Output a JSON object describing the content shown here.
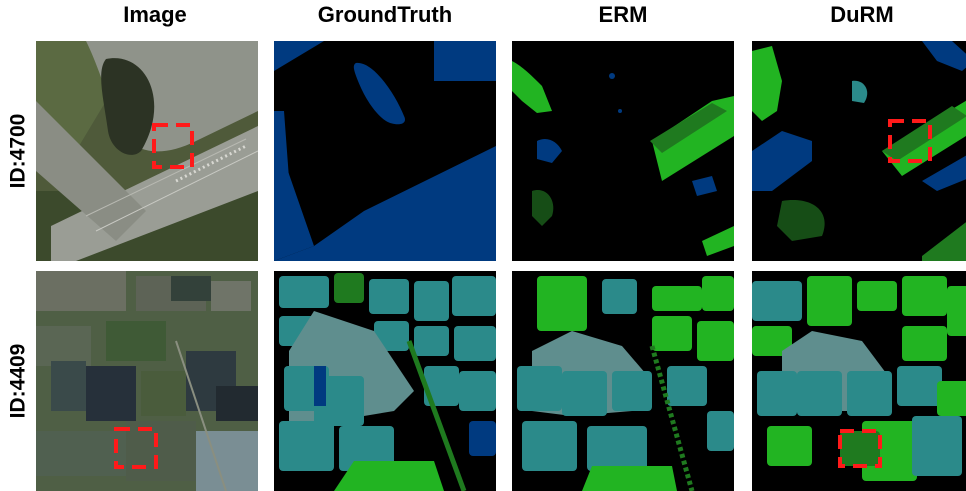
{
  "columns": [
    "Image",
    "GroundTruth",
    "ERM",
    "DuRM"
  ],
  "rows": [
    {
      "label": "ID:4700"
    },
    {
      "label": "ID:4409"
    }
  ],
  "colors": {
    "background": "#000000",
    "blue": "#003a80",
    "teal": "#2b8a8a",
    "gray_teal": "#5f8e8e",
    "bright_green": "#22b422",
    "dark_green": "#1f7a1f",
    "deep_green": "#164d16",
    "highlight_box": "#ff1a1a"
  }
}
